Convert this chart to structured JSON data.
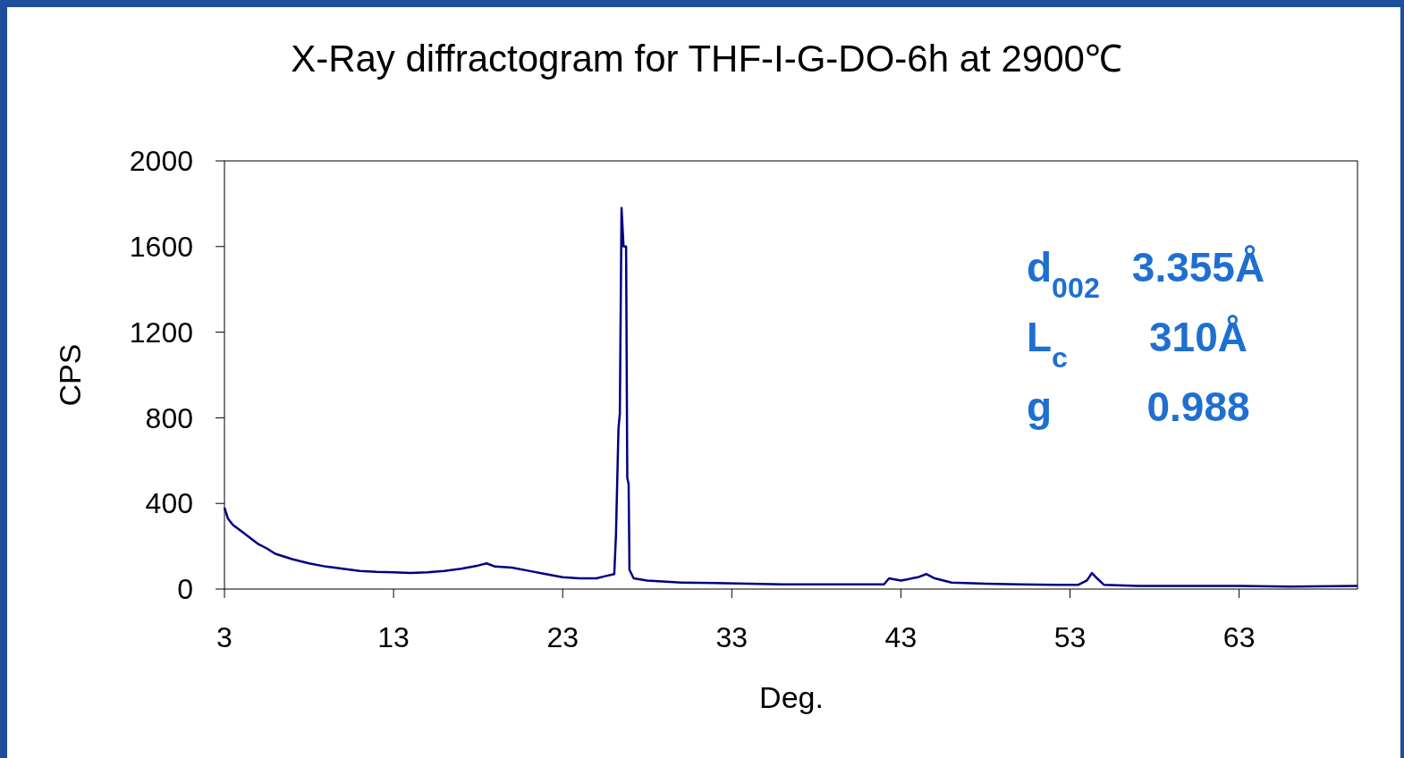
{
  "chart_data": {
    "type": "line",
    "title": "X-Ray diffractogram for THF-I-G-DO-6h at 2900℃",
    "xlabel": "Deg.",
    "ylabel": "CPS",
    "annotations": [
      "d$_{002}$\t3.355Å",
      "L$_{c}$\t310Å",
      "g\t0.988"
    ],
    "xlim": [
      3,
      70
    ],
    "xticks": [
      3,
      13,
      23,
      33,
      43,
      53,
      63
    ],
    "ylim": [
      0,
      2000
    ],
    "yticks": [
      0,
      400,
      800,
      1200,
      1600,
      2000
    ],
    "grid": false,
    "series": [
      {
        "color": "#000080",
        "x": [
          3,
          3.2,
          3.5,
          4,
          4.5,
          5,
          5.5,
          6,
          7,
          8,
          9,
          10,
          11,
          12,
          13,
          14,
          15,
          16,
          17,
          18,
          18.5,
          19,
          20,
          21,
          22,
          23,
          24,
          25,
          25.5,
          26.05,
          26.15,
          26.3,
          26.38,
          26.48,
          26.6,
          26.75,
          26.82,
          26.9,
          26.95,
          27.2,
          28,
          30,
          32,
          34,
          36,
          38,
          40,
          42,
          42.3,
          43,
          44,
          44.5,
          45,
          46,
          48,
          50,
          52,
          53.5,
          54,
          54.3,
          54.6,
          55,
          57,
          60,
          63,
          66,
          70
        ],
        "values": [
          380,
          330,
          300,
          270,
          240,
          210,
          190,
          165,
          140,
          120,
          105,
          95,
          85,
          80,
          78,
          75,
          78,
          85,
          95,
          110,
          120,
          105,
          100,
          85,
          70,
          55,
          50,
          50,
          60,
          70,
          250,
          750,
          820,
          1780,
          1600,
          1600,
          520,
          490,
          90,
          50,
          40,
          30,
          28,
          25,
          22,
          22,
          22,
          22,
          50,
          40,
          55,
          70,
          50,
          30,
          25,
          22,
          20,
          20,
          40,
          75,
          50,
          20,
          15,
          15,
          15,
          12,
          15
        ]
      }
    ]
  }
}
